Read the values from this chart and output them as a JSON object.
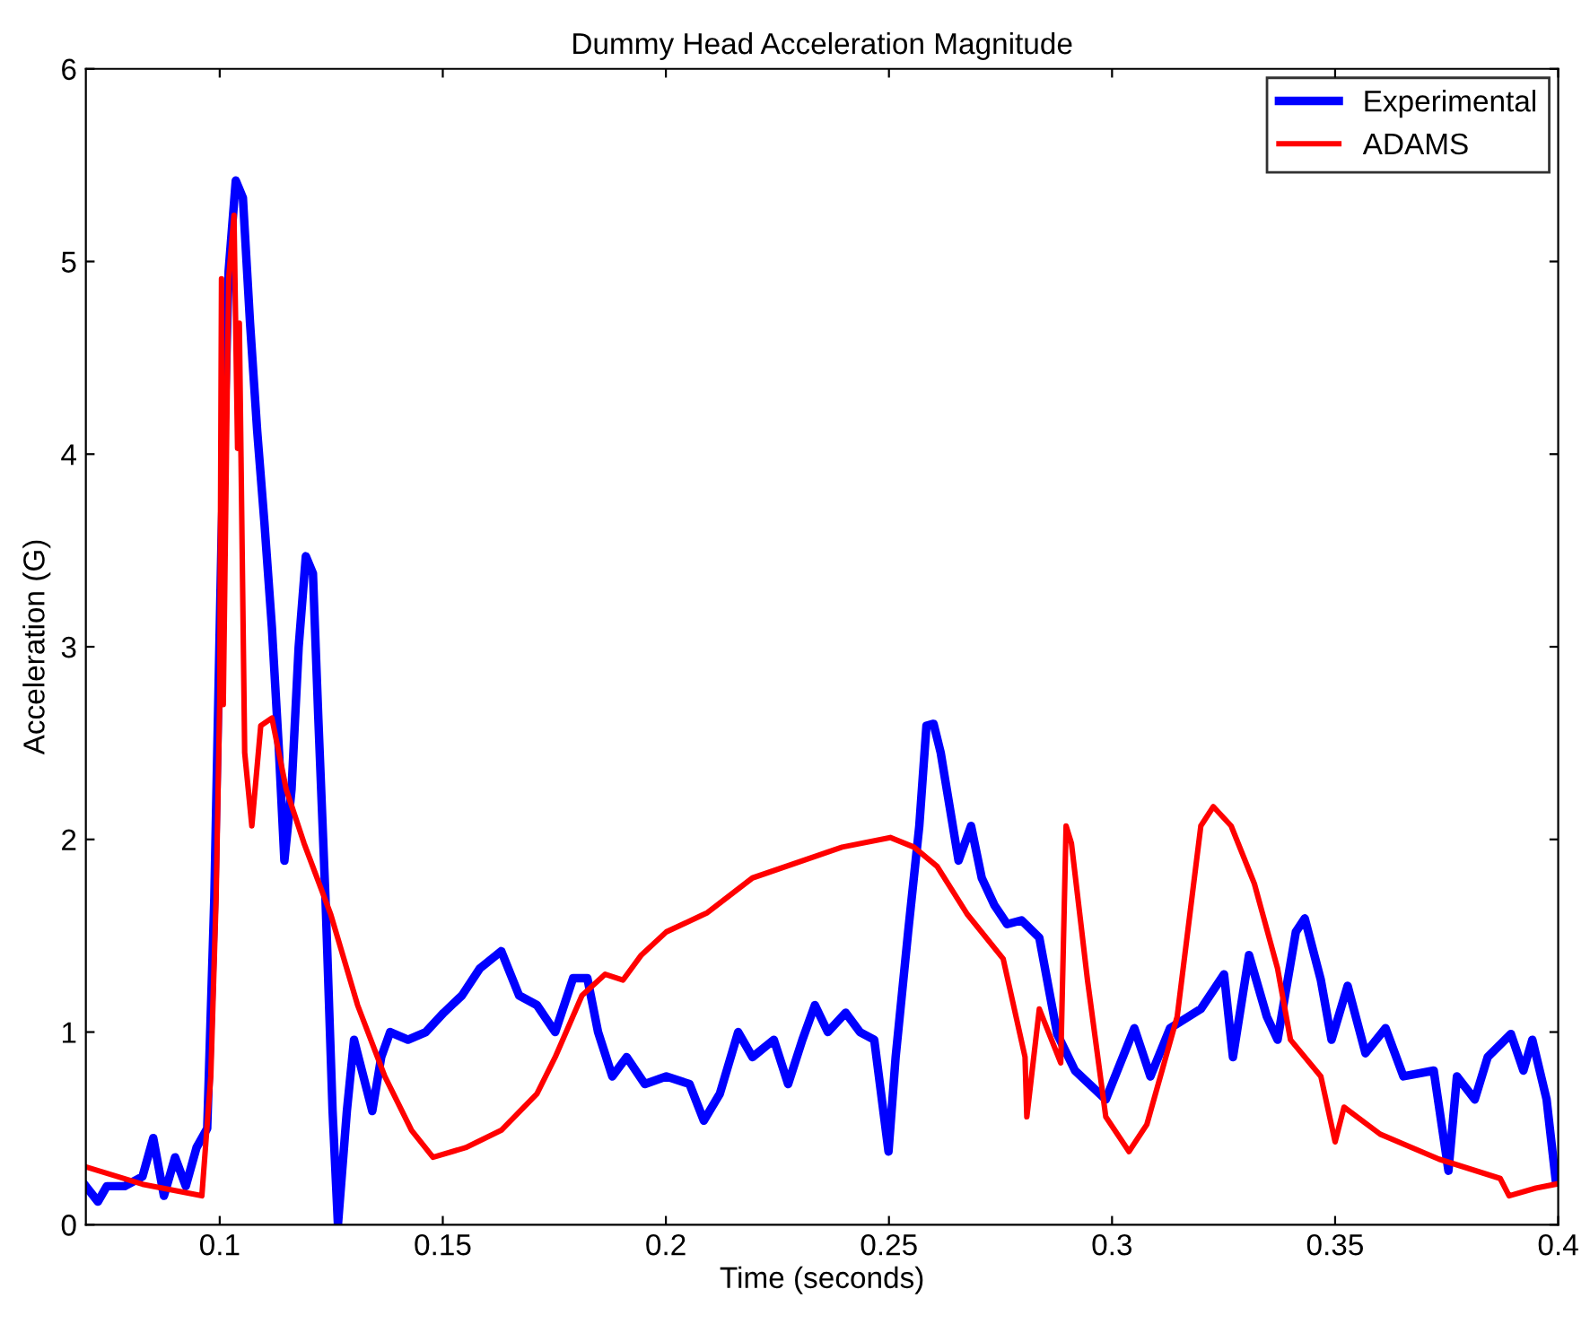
{
  "chart_data": {
    "type": "line",
    "title": "Dummy Head Acceleration Magnitude",
    "xlabel": "Time (seconds)",
    "ylabel": "Acceleration (G)",
    "xlim": [
      0.07,
      0.4
    ],
    "xticks": [
      0.1,
      0.15,
      0.2,
      0.25,
      0.3,
      0.35,
      0.4
    ],
    "ylim": [
      0,
      6
    ],
    "yticks": [
      0,
      1,
      2,
      3,
      4,
      5,
      6
    ],
    "grid": false,
    "legend": "top right",
    "marker": "none",
    "line_style": "solid",
    "series": [
      {
        "name": "Experimental",
        "color": "#0000ff",
        "x": [
          0.07,
          0.0727,
          0.0747,
          0.0787,
          0.0827,
          0.0851,
          0.0875,
          0.09,
          0.0924,
          0.0948,
          0.0972,
          0.0988,
          0.1004,
          0.102,
          0.1036,
          0.1052,
          0.1068,
          0.1084,
          0.11,
          0.1117,
          0.1133,
          0.1145,
          0.1161,
          0.1177,
          0.1193,
          0.1209,
          0.1221,
          0.1237,
          0.1253,
          0.1265,
          0.1285,
          0.1301,
          0.1322,
          0.1342,
          0.1362,
          0.1382,
          0.1422,
          0.1462,
          0.1502,
          0.1543,
          0.1583,
          0.1631,
          0.1671,
          0.1711,
          0.1752,
          0.1792,
          0.1824,
          0.1848,
          0.188,
          0.1912,
          0.1953,
          0.2001,
          0.2053,
          0.2085,
          0.2121,
          0.2162,
          0.2194,
          0.2242,
          0.2274,
          0.2306,
          0.2334,
          0.2363,
          0.2403,
          0.2435,
          0.2467,
          0.2499,
          0.2515,
          0.2543,
          0.2568,
          0.2584,
          0.26,
          0.2616,
          0.2636,
          0.2656,
          0.2684,
          0.2708,
          0.2736,
          0.2765,
          0.2797,
          0.2837,
          0.2877,
          0.2917,
          0.2986,
          0.305,
          0.3086,
          0.313,
          0.3199,
          0.3251,
          0.3271,
          0.3307,
          0.3347,
          0.3371,
          0.3412,
          0.3432,
          0.3468,
          0.3492,
          0.3528,
          0.3568,
          0.3613,
          0.3653,
          0.3721,
          0.3754,
          0.3773,
          0.3813,
          0.3842,
          0.3894,
          0.3922,
          0.3942,
          0.3974,
          0.3994
        ],
        "values": [
          0.2,
          0.12,
          0.2,
          0.2,
          0.25,
          0.45,
          0.15,
          0.35,
          0.2,
          0.4,
          0.5,
          1.7,
          3.55,
          4.95,
          5.42,
          5.33,
          4.68,
          4.12,
          3.65,
          3.1,
          2.45,
          1.89,
          2.26,
          3.0,
          3.47,
          3.38,
          2.63,
          1.7,
          0.59,
          0.0,
          0.59,
          0.96,
          0.77,
          0.59,
          0.87,
          1.0,
          0.96,
          1.0,
          1.1,
          1.19,
          1.33,
          1.42,
          1.19,
          1.14,
          1.0,
          1.28,
          1.28,
          1.0,
          0.77,
          0.87,
          0.73,
          0.77,
          0.73,
          0.54,
          0.68,
          1.0,
          0.87,
          0.96,
          0.73,
          0.96,
          1.14,
          1.0,
          1.1,
          1.0,
          0.96,
          0.38,
          0.87,
          1.52,
          2.07,
          2.59,
          2.6,
          2.45,
          2.17,
          1.89,
          2.07,
          1.8,
          1.66,
          1.56,
          1.58,
          1.49,
          0.99,
          0.8,
          0.65,
          1.02,
          0.77,
          1.02,
          1.12,
          1.3,
          0.87,
          1.4,
          1.08,
          0.96,
          1.52,
          1.59,
          1.27,
          0.96,
          1.24,
          0.89,
          1.02,
          0.77,
          0.8,
          0.28,
          0.77,
          0.65,
          0.87,
          0.99,
          0.8,
          0.96,
          0.65,
          0.24
        ]
      },
      {
        "name": "ADAMS",
        "color": "#ff0000",
        "x": [
          0.07,
          0.0827,
          0.096,
          0.098,
          0.0992,
          0.1,
          0.1004,
          0.1008,
          0.102,
          0.1032,
          0.104,
          0.1044,
          0.1056,
          0.1072,
          0.1092,
          0.1117,
          0.1149,
          0.1189,
          0.1249,
          0.1309,
          0.137,
          0.143,
          0.1478,
          0.1551,
          0.1631,
          0.1711,
          0.1752,
          0.1812,
          0.1864,
          0.1904,
          0.1945,
          0.2001,
          0.2093,
          0.2194,
          0.2395,
          0.2503,
          0.2556,
          0.2608,
          0.2676,
          0.2756,
          0.2805,
          0.2809,
          0.2837,
          0.2885,
          0.2897,
          0.2909,
          0.2945,
          0.2986,
          0.3038,
          0.3078,
          0.3146,
          0.3199,
          0.3227,
          0.3267,
          0.3319,
          0.3371,
          0.34,
          0.3468,
          0.35,
          0.352,
          0.3601,
          0.3733,
          0.387,
          0.389,
          0.395,
          0.3994
        ],
        "values": [
          0.3,
          0.21,
          0.15,
          0.77,
          1.7,
          2.72,
          4.91,
          2.7,
          4.91,
          5.24,
          4.03,
          4.68,
          2.45,
          2.07,
          2.59,
          2.63,
          2.26,
          1.98,
          1.61,
          1.14,
          0.77,
          0.49,
          0.35,
          0.4,
          0.49,
          0.68,
          0.87,
          1.19,
          1.3,
          1.27,
          1.4,
          1.52,
          1.62,
          1.8,
          1.96,
          2.01,
          1.96,
          1.86,
          1.61,
          1.38,
          0.87,
          0.56,
          1.12,
          0.84,
          2.07,
          1.98,
          1.27,
          0.56,
          0.38,
          0.52,
          1.08,
          2.07,
          2.17,
          2.07,
          1.77,
          1.33,
          0.96,
          0.77,
          0.43,
          0.61,
          0.47,
          0.34,
          0.24,
          0.15,
          0.19,
          0.21
        ]
      }
    ]
  }
}
